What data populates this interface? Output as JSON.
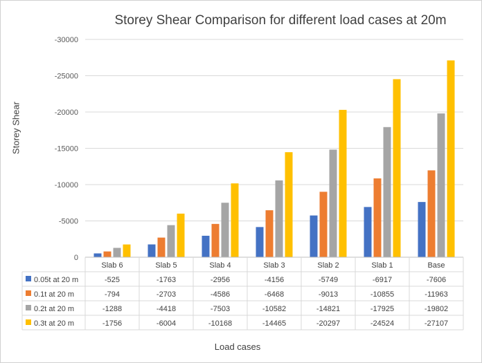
{
  "chart_data": {
    "type": "bar",
    "title": "Storey Shear Comparison for different load cases at 20m",
    "xlabel": "Load cases",
    "ylabel": "Storey Shear",
    "categories": [
      "Slab 6",
      "Slab 5",
      "Slab 4",
      "Slab 3",
      "Slab 2",
      "Slab 1",
      "Base"
    ],
    "ylim": [
      0,
      -30000
    ],
    "yticks": [
      "0",
      "-5000",
      "-10000",
      "-15000",
      "-20000",
      "-25000",
      "-30000"
    ],
    "grid": true,
    "legend": "data table below chart",
    "series": [
      {
        "name": "0.05t at 20 m",
        "color": "#4472C4",
        "values": [
          -525,
          -1763,
          -2956,
          -4156,
          -5749,
          -6917,
          -7606
        ]
      },
      {
        "name": "0.1t at 20 m",
        "color": "#ED7D31",
        "values": [
          -794,
          -2703,
          -4586,
          -6468,
          -9013,
          -10855,
          -11963
        ]
      },
      {
        "name": "0.2t at 20 m",
        "color": "#A5A5A5",
        "values": [
          -1288,
          -4418,
          -7503,
          -10582,
          -14821,
          -17925,
          -19802
        ]
      },
      {
        "name": "0.3t at 20 m",
        "color": "#FFC000",
        "values": [
          -1756,
          -6004,
          -10168,
          -14465,
          -20297,
          -24524,
          -27107
        ]
      }
    ]
  }
}
